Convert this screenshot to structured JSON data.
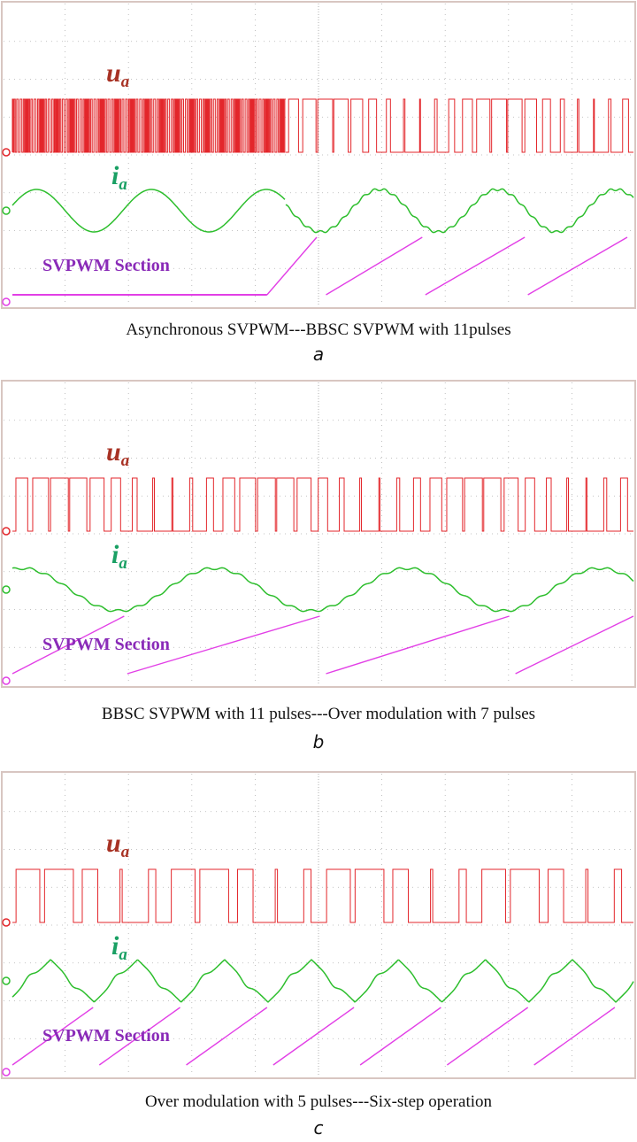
{
  "colors": {
    "voltage": "#e3262b",
    "current": "#2dbe2d",
    "section": "#e23fe6",
    "section_label": "#8a2bb8",
    "voltage_label": "#a83224",
    "current_label": "#1aa064",
    "grid": "#b0b0b0",
    "frame": "#d8c6c1"
  },
  "chart_data": [
    {
      "type": "line",
      "panel": "a",
      "voltage_label": {
        "main": "u",
        "sub": "a"
      },
      "current_label": {
        "main": "i",
        "sub": "a"
      },
      "section_label": "SVPWM Section",
      "caption": "Asynchronous SVPWM---BBSC SVPWM with 11pulses",
      "letter": "a",
      "series": [
        {
          "key": "u_a",
          "kind": "pwm",
          "segments": [
            {
              "t0": 0.0,
              "t1": 0.44,
              "period": 0.0042,
              "duty": 0.5
            },
            {
              "t0": 0.44,
              "t1": 1.0,
              "pulses_per_cycle": 11
            }
          ]
        },
        {
          "key": "i_a",
          "kind": "sine",
          "segments": [
            {
              "t0": 0.0,
              "t1": 0.44,
              "period": 0.185,
              "phase": 0.04,
              "amp": 1.0,
              "ripple": 0
            },
            {
              "t0": 0.44,
              "t1": 1.0,
              "period": 0.19,
              "phase": 0.455,
              "amp": 1.0,
              "ripple": 0.06
            }
          ]
        },
        {
          "key": "section",
          "kind": "ramp",
          "segments": [
            {
              "t0": 0.0,
              "t1": 0.41,
              "flat": true
            },
            {
              "t0": 0.41,
              "t1": 0.49
            },
            {
              "t0": 0.505,
              "t1": 0.66
            },
            {
              "t0": 0.665,
              "t1": 0.825
            },
            {
              "t0": 0.83,
              "t1": 0.99
            }
          ]
        }
      ]
    },
    {
      "type": "line",
      "panel": "b",
      "voltage_label": {
        "main": "u",
        "sub": "a"
      },
      "current_label": {
        "main": "i",
        "sub": "a"
      },
      "section_label": "SVPWM Section",
      "caption": "BBSC SVPWM with 11 pulses---Over modulation with 7 pulses",
      "letter": "b",
      "series": [
        {
          "key": "u_a",
          "kind": "pwm",
          "segments": [
            {
              "t0": 0.0,
              "t1": 1.0,
              "pulses_per_cycle": 11
            }
          ]
        },
        {
          "key": "i_a",
          "kind": "sine",
          "segments": [
            {
              "t0": 0.0,
              "t1": 1.0,
              "period": 0.31,
              "phase": 0.2,
              "amp": 1.0,
              "ripple": 0.06
            }
          ]
        },
        {
          "key": "section",
          "kind": "ramp",
          "segments": [
            {
              "t0": 0.0,
              "t1": 0.18
            },
            {
              "t0": 0.185,
              "t1": 0.495
            },
            {
              "t0": 0.505,
              "t1": 0.8
            },
            {
              "t0": 0.81,
              "t1": 1.0
            }
          ]
        }
      ]
    },
    {
      "type": "line",
      "panel": "c",
      "voltage_label": {
        "main": "u",
        "sub": "a"
      },
      "current_label": {
        "main": "i",
        "sub": "a"
      },
      "section_label": "SVPWM Section",
      "caption": "Over modulation with 5 pulses---Six-step operation",
      "letter": "c",
      "series": [
        {
          "key": "u_a",
          "kind": "pwm",
          "segments": [
            {
              "t0": 0.0,
              "t1": 1.0,
              "pulses_per_cycle": 5
            }
          ]
        },
        {
          "key": "i_a",
          "kind": "cusp",
          "segments": [
            {
              "t0": 0.0,
              "t1": 1.0,
              "period": 0.14,
              "phase": 0.06,
              "amp": 1.0
            }
          ]
        },
        {
          "key": "section",
          "kind": "ramp",
          "segments": [
            {
              "t0": 0.0,
              "t1": 0.13
            },
            {
              "t0": 0.14,
              "t1": 0.27
            },
            {
              "t0": 0.28,
              "t1": 0.41
            },
            {
              "t0": 0.42,
              "t1": 0.55
            },
            {
              "t0": 0.56,
              "t1": 0.69
            },
            {
              "t0": 0.7,
              "t1": 0.83
            },
            {
              "t0": 0.84,
              "t1": 0.97
            }
          ]
        }
      ]
    }
  ]
}
